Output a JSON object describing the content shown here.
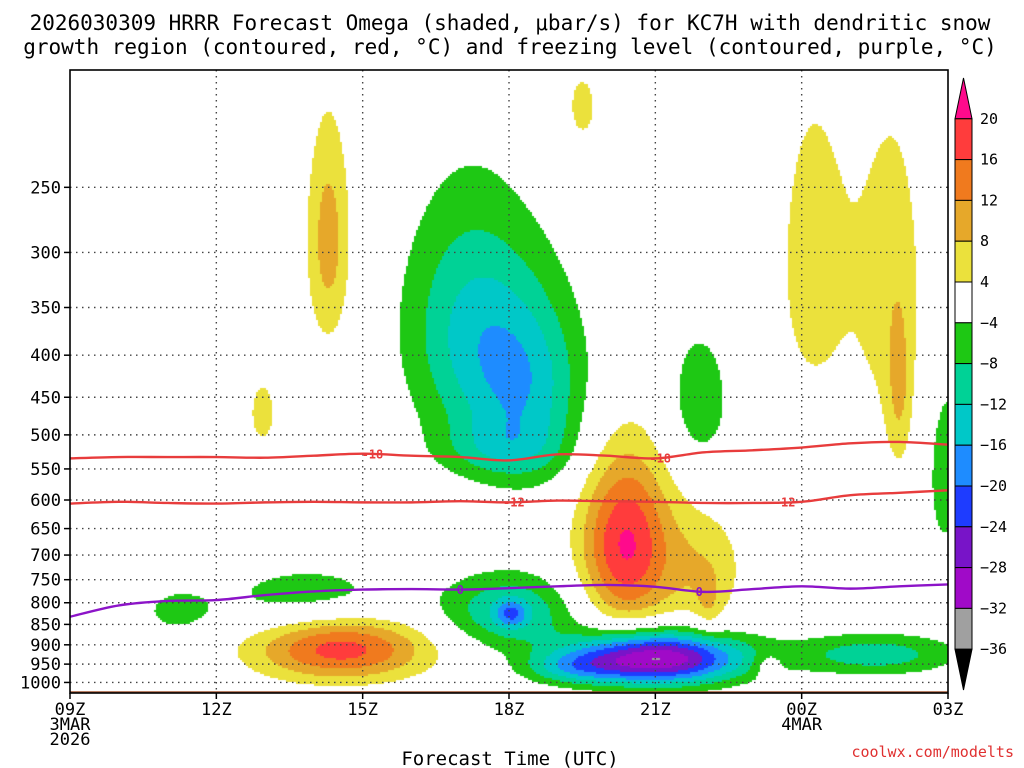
{
  "chart_data": {
    "type": "heatmap",
    "title_lines": [
      "2026030309 HRRR Forecast Omega (shaded, μbar/s) for KC7H with dendritic snow",
      "growth region (contoured, red, °C) and freezing level (contoured, purple, °C)"
    ],
    "xlabel": "Forecast Time (UTC)",
    "credit": "coolwx.com/modelts",
    "x_ticks": [
      {
        "hour": 0,
        "lines": [
          "09Z",
          "3MAR",
          "2026"
        ]
      },
      {
        "hour": 3,
        "lines": [
          "12Z"
        ]
      },
      {
        "hour": 6,
        "lines": [
          "15Z"
        ]
      },
      {
        "hour": 9,
        "lines": [
          "18Z"
        ]
      },
      {
        "hour": 12,
        "lines": [
          "21Z"
        ]
      },
      {
        "hour": 15,
        "lines": [
          "00Z",
          "4MAR"
        ]
      },
      {
        "hour": 18,
        "lines": [
          "03Z"
        ]
      }
    ],
    "x_range_hours": [
      0,
      18
    ],
    "y_levels_hpa": [
      250,
      300,
      350,
      400,
      450,
      500,
      550,
      600,
      650,
      700,
      750,
      800,
      850,
      900,
      950,
      1000
    ],
    "y_range_hpa": [
      180,
      1030
    ],
    "colorbar": {
      "labels": [
        "20",
        "16",
        "12",
        "8",
        "4",
        "−4",
        "−8",
        "−12",
        "−16",
        "−20",
        "−24",
        "−28",
        "−32",
        "−36"
      ],
      "bins": [
        {
          "lo": 20,
          "hi": 24,
          "color": "#ff0a8c"
        },
        {
          "lo": 16,
          "hi": 20,
          "color": "#ff3c3c"
        },
        {
          "lo": 12,
          "hi": 16,
          "color": "#f07a1e"
        },
        {
          "lo": 8,
          "hi": 12,
          "color": "#e6a82a"
        },
        {
          "lo": 4,
          "hi": 8,
          "color": "#ebe13c"
        },
        {
          "lo": -4,
          "hi": 4,
          "color": "#ffffff"
        },
        {
          "lo": -8,
          "hi": -4,
          "color": "#1ec814"
        },
        {
          "lo": -12,
          "hi": -8,
          "color": "#00d296"
        },
        {
          "lo": -16,
          "hi": -12,
          "color": "#00c8c8"
        },
        {
          "lo": -20,
          "hi": -16,
          "color": "#1e8cff"
        },
        {
          "lo": -24,
          "hi": -20,
          "color": "#1e3cff"
        },
        {
          "lo": -28,
          "hi": -24,
          "color": "#7814c8"
        },
        {
          "lo": -32,
          "hi": -28,
          "color": "#a00ac8"
        },
        {
          "lo": -36,
          "hi": -32,
          "color": "#a0a0a0"
        },
        {
          "lo": -40,
          "hi": -36,
          "color": "#000000"
        }
      ]
    },
    "omega_blobs": [
      {
        "x": 8.15,
        "p": 370,
        "sx": 0.95,
        "sy": 90,
        "a": -11.5,
        "rot": -20
      },
      {
        "x": 9.4,
        "p": 440,
        "sx": 0.85,
        "sy": 85,
        "a": -12.5,
        "rot": 15
      },
      {
        "x": 8.8,
        "p": 520,
        "sx": 0.9,
        "sy": 30,
        "a": -6
      },
      {
        "x": 12.9,
        "p": 455,
        "sx": 0.5,
        "sy": 70,
        "a": -6.5
      },
      {
        "x": 17.95,
        "p": 550,
        "sx": 0.32,
        "sy": 120,
        "a": -6
      },
      {
        "x": 16.5,
        "p": 925,
        "sx": 1.2,
        "sy": 38,
        "a": -10.5
      },
      {
        "x": 2.2,
        "p": 820,
        "sx": 0.5,
        "sy": 35,
        "a": -5.5
      },
      {
        "x": 4.9,
        "p": 790,
        "sx": 1.4,
        "sy": 55,
        "a": -6.5,
        "rot": -12
      },
      {
        "x": 9.0,
        "p": 820,
        "sx": 0.95,
        "sy": 60,
        "a": -12
      },
      {
        "x": 9.05,
        "p": 825,
        "sx": 0.22,
        "sy": 22,
        "a": -10
      },
      {
        "x": 12.0,
        "p": 935,
        "sx": 1.25,
        "sy": 48,
        "a": -33
      },
      {
        "x": 10.3,
        "p": 960,
        "sx": 0.7,
        "sy": 30,
        "a": -8
      },
      {
        "x": 5.3,
        "p": 290,
        "sx": 0.32,
        "sy": 65,
        "a": 10
      },
      {
        "x": 3.95,
        "p": 470,
        "sx": 0.25,
        "sy": 40,
        "a": 5.5
      },
      {
        "x": 5.55,
        "p": 910,
        "sx": 1.25,
        "sy": 58,
        "a": 18
      },
      {
        "x": 10.5,
        "p": 200,
        "sx": 0.35,
        "sy": 22,
        "a": 5
      },
      {
        "x": 11.4,
        "p": 680,
        "sx": 0.65,
        "sy": 115,
        "a": 20.5
      },
      {
        "x": 13.0,
        "p": 730,
        "sx": 0.6,
        "sy": 90,
        "a": 7
      },
      {
        "x": 13.1,
        "p": 810,
        "sx": 0.18,
        "sy": 50,
        "a": 4
      },
      {
        "x": 15.25,
        "p": 310,
        "sx": 0.6,
        "sy": 110,
        "a": 6,
        "rot": -25
      },
      {
        "x": 16.85,
        "p": 330,
        "sx": 0.55,
        "sy": 120,
        "a": 6
      },
      {
        "x": 17.0,
        "p": 445,
        "sx": 0.18,
        "sy": 70,
        "a": 6
      },
      {
        "x": 14.3,
        "p": 950,
        "sx": 0.22,
        "sy": 25,
        "a": 5
      },
      {
        "x": 7.0,
        "p": 720,
        "sx": 0.12,
        "sy": 40,
        "a": 4.5
      }
    ],
    "contours": [
      {
        "label": "-18",
        "color": "#e83c3c",
        "label_hours": [
          6.2,
          12.1
        ],
        "x": [
          0,
          1,
          2,
          3,
          4,
          5,
          6,
          7,
          8,
          9,
          10,
          11,
          12,
          13,
          14,
          15,
          16,
          17,
          18
        ],
        "p": [
          534,
          532,
          532,
          532,
          533,
          530,
          527,
          530,
          532,
          537,
          528,
          530,
          534,
          525,
          522,
          518,
          512,
          510,
          514
        ]
      },
      {
        "label": "-12",
        "color": "#e83c3c",
        "label_hours": [
          9.1,
          14.65
        ],
        "x": [
          0,
          1,
          2,
          3,
          4,
          5,
          6,
          7,
          8,
          9,
          10,
          11,
          12,
          13,
          14,
          15,
          16,
          17,
          18
        ],
        "p": [
          606,
          603,
          605,
          606,
          604,
          603,
          604,
          604,
          602,
          604,
          601,
          602,
          603,
          605,
          605,
          603,
          592,
          588,
          584
        ]
      },
      {
        "label": "0",
        "color": "#8c14c8",
        "label_hours": [
          8.0,
          12.9
        ],
        "x": [
          0,
          1,
          2,
          3,
          4,
          5,
          6,
          7,
          8,
          9,
          10,
          11,
          12,
          13,
          14,
          15,
          16,
          17,
          18
        ],
        "p": [
          832,
          806,
          796,
          794,
          783,
          775,
          771,
          770,
          771,
          768,
          764,
          761,
          765,
          776,
          770,
          764,
          769,
          764,
          760
        ]
      }
    ],
    "terrain": {
      "label": "surface",
      "color": "#a0522d",
      "p_top": 1025
    }
  }
}
